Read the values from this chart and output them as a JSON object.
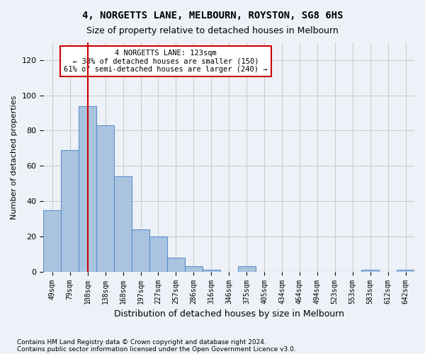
{
  "title": "4, NORGETTS LANE, MELBOURN, ROYSTON, SG8 6HS",
  "subtitle": "Size of property relative to detached houses in Melbourn",
  "xlabel": "Distribution of detached houses by size in Melbourn",
  "ylabel": "Number of detached properties",
  "bar_values": [
    35,
    69,
    94,
    83,
    54,
    24,
    20,
    8,
    3,
    1,
    0,
    3,
    0,
    0,
    0,
    0,
    0,
    0,
    1,
    0,
    1
  ],
  "bin_labels": [
    "49sqm",
    "79sqm",
    "108sqm",
    "138sqm",
    "168sqm",
    "197sqm",
    "227sqm",
    "257sqm",
    "286sqm",
    "316sqm",
    "346sqm",
    "375sqm",
    "405sqm",
    "434sqm",
    "464sqm",
    "494sqm",
    "523sqm",
    "553sqm",
    "583sqm",
    "612sqm",
    "642sqm"
  ],
  "bar_color": "#aac4e0",
  "bar_edge_color": "#5b8fc9",
  "grid_color": "#cccccc",
  "background_color": "#eef2f8",
  "annotation_text": "4 NORGETTS LANE: 123sqm\n← 38% of detached houses are smaller (150)\n61% of semi-detached houses are larger (240) →",
  "annotation_box_color": "#ffffff",
  "annotation_box_edge_color": "#cc0000",
  "red_line_x": 2,
  "ylim": [
    0,
    130
  ],
  "yticks": [
    0,
    20,
    40,
    60,
    80,
    100,
    120
  ],
  "footer_line1": "Contains HM Land Registry data © Crown copyright and database right 2024.",
  "footer_line2": "Contains public sector information licensed under the Open Government Licence v3.0."
}
